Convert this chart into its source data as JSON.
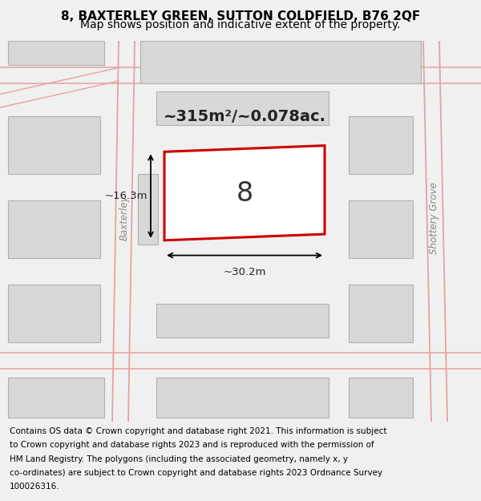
{
  "title_line1": "8, BAXTERLEY GREEN, SUTTON COLDFIELD, B76 2QF",
  "title_line2": "Map shows position and indicative extent of the property.",
  "footer_lines": [
    "Contains OS data © Crown copyright and database right 2021. This information is subject",
    "to Crown copyright and database rights 2023 and is reproduced with the permission of",
    "HM Land Registry. The polygons (including the associated geometry, namely x, y",
    "co-ordinates) are subject to Crown copyright and database rights 2023 Ordnance Survey",
    "100026316."
  ],
  "bg_color": "#f0f0f0",
  "map_bg": "#ffffff",
  "road_color": "#e8a0a0",
  "building_fill": "#d8d8d8",
  "building_edge": "#b0b0b0",
  "property_fill": "#ffffff",
  "property_edge": "#cc0000",
  "area_text": "~315m²/~0.078ac.",
  "width_label": "~30.2m",
  "height_label": "~16.3m",
  "property_number": "8",
  "street_label_left": "Baxterley",
  "street_label_right": "Shottery Grove",
  "title_fontsize": 11,
  "subtitle_fontsize": 10,
  "footer_fontsize": 7.5
}
